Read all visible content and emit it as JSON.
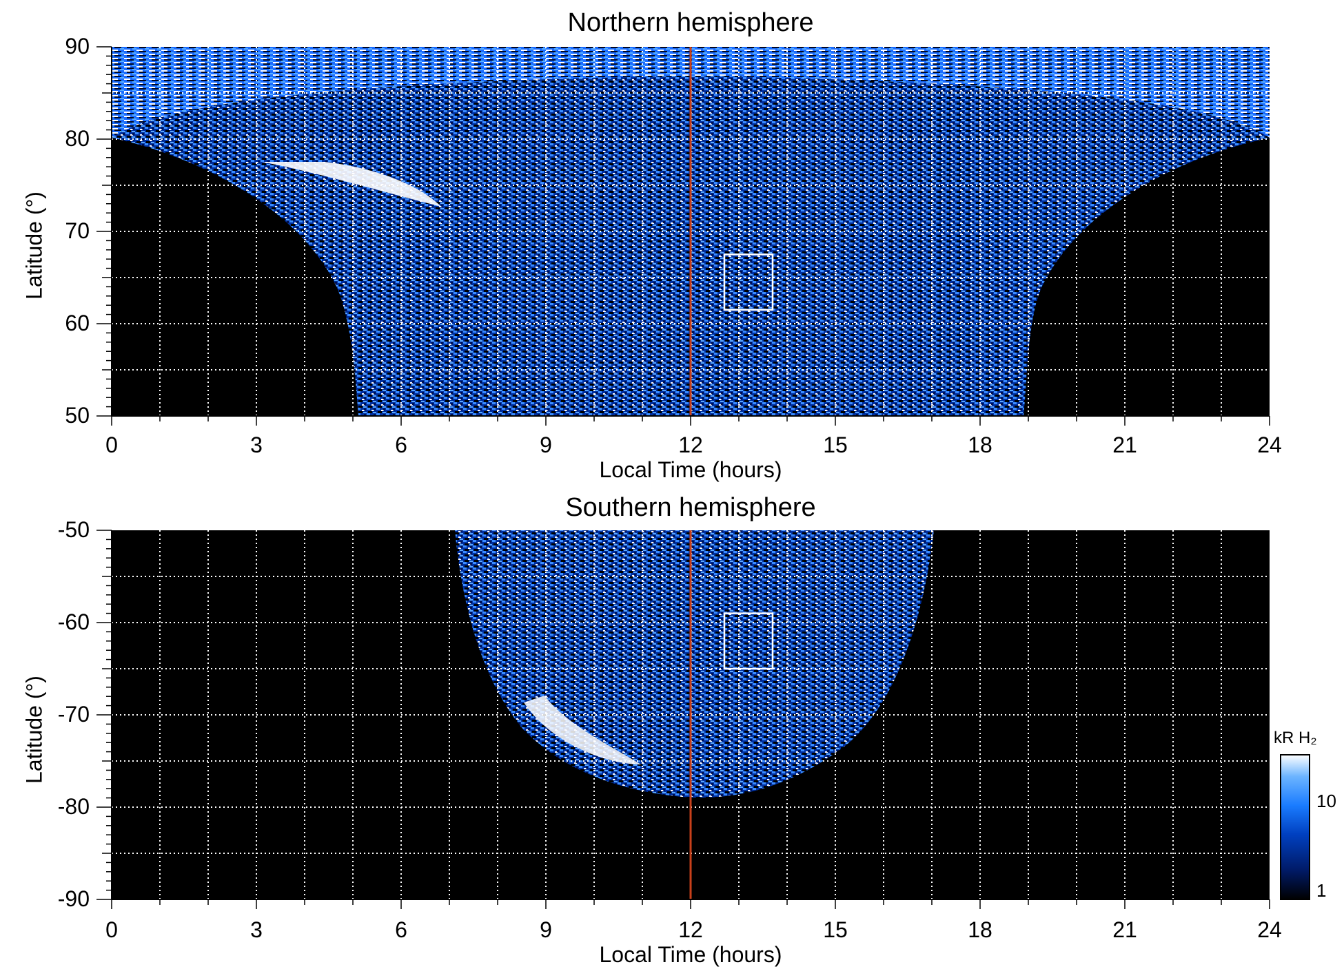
{
  "colors": {
    "background": "#000000",
    "grid": "#ffffff",
    "noon_line": "#c8401a",
    "box": "#ffffff",
    "colormap": [
      "#000000",
      "#001a66",
      "#0040c0",
      "#1a7cff",
      "#6cb4ff",
      "#ffffff"
    ]
  },
  "chart_data": [
    {
      "type": "heatmap",
      "title": "Northern hemisphere",
      "xlabel": "Local Time (hours)",
      "ylabel": "Latitude (°)",
      "xlim": [
        0,
        24
      ],
      "ylim": [
        50,
        90
      ],
      "xticks": [
        "0",
        "3",
        "6",
        "9",
        "12",
        "15",
        "18",
        "21",
        "24"
      ],
      "yticks": [
        "50",
        "60",
        "70",
        "80",
        "90"
      ],
      "grid": true,
      "noon_line_x": 12,
      "box": {
        "x": [
          12.7,
          13.7
        ],
        "y": [
          61.5,
          67.5
        ]
      }
    },
    {
      "type": "heatmap",
      "title": "Southern hemisphere",
      "xlabel": "Local Time (hours)",
      "ylabel": "Latitude (°)",
      "xlim": [
        0,
        24
      ],
      "ylim": [
        -90,
        -50
      ],
      "xticks": [
        "0",
        "3",
        "6",
        "9",
        "12",
        "15",
        "18",
        "21",
        "24"
      ],
      "yticks": [
        "-50",
        "-60",
        "-70",
        "-80",
        "-90"
      ],
      "grid": true,
      "noon_line_x": 12,
      "box": {
        "x": [
          12.7,
          13.7
        ],
        "y": [
          -65,
          -59
        ]
      }
    }
  ],
  "colorbar": {
    "label": "kR H₂",
    "ticks": [
      "10",
      "1"
    ],
    "range": [
      1,
      30
    ],
    "scale": "log"
  }
}
